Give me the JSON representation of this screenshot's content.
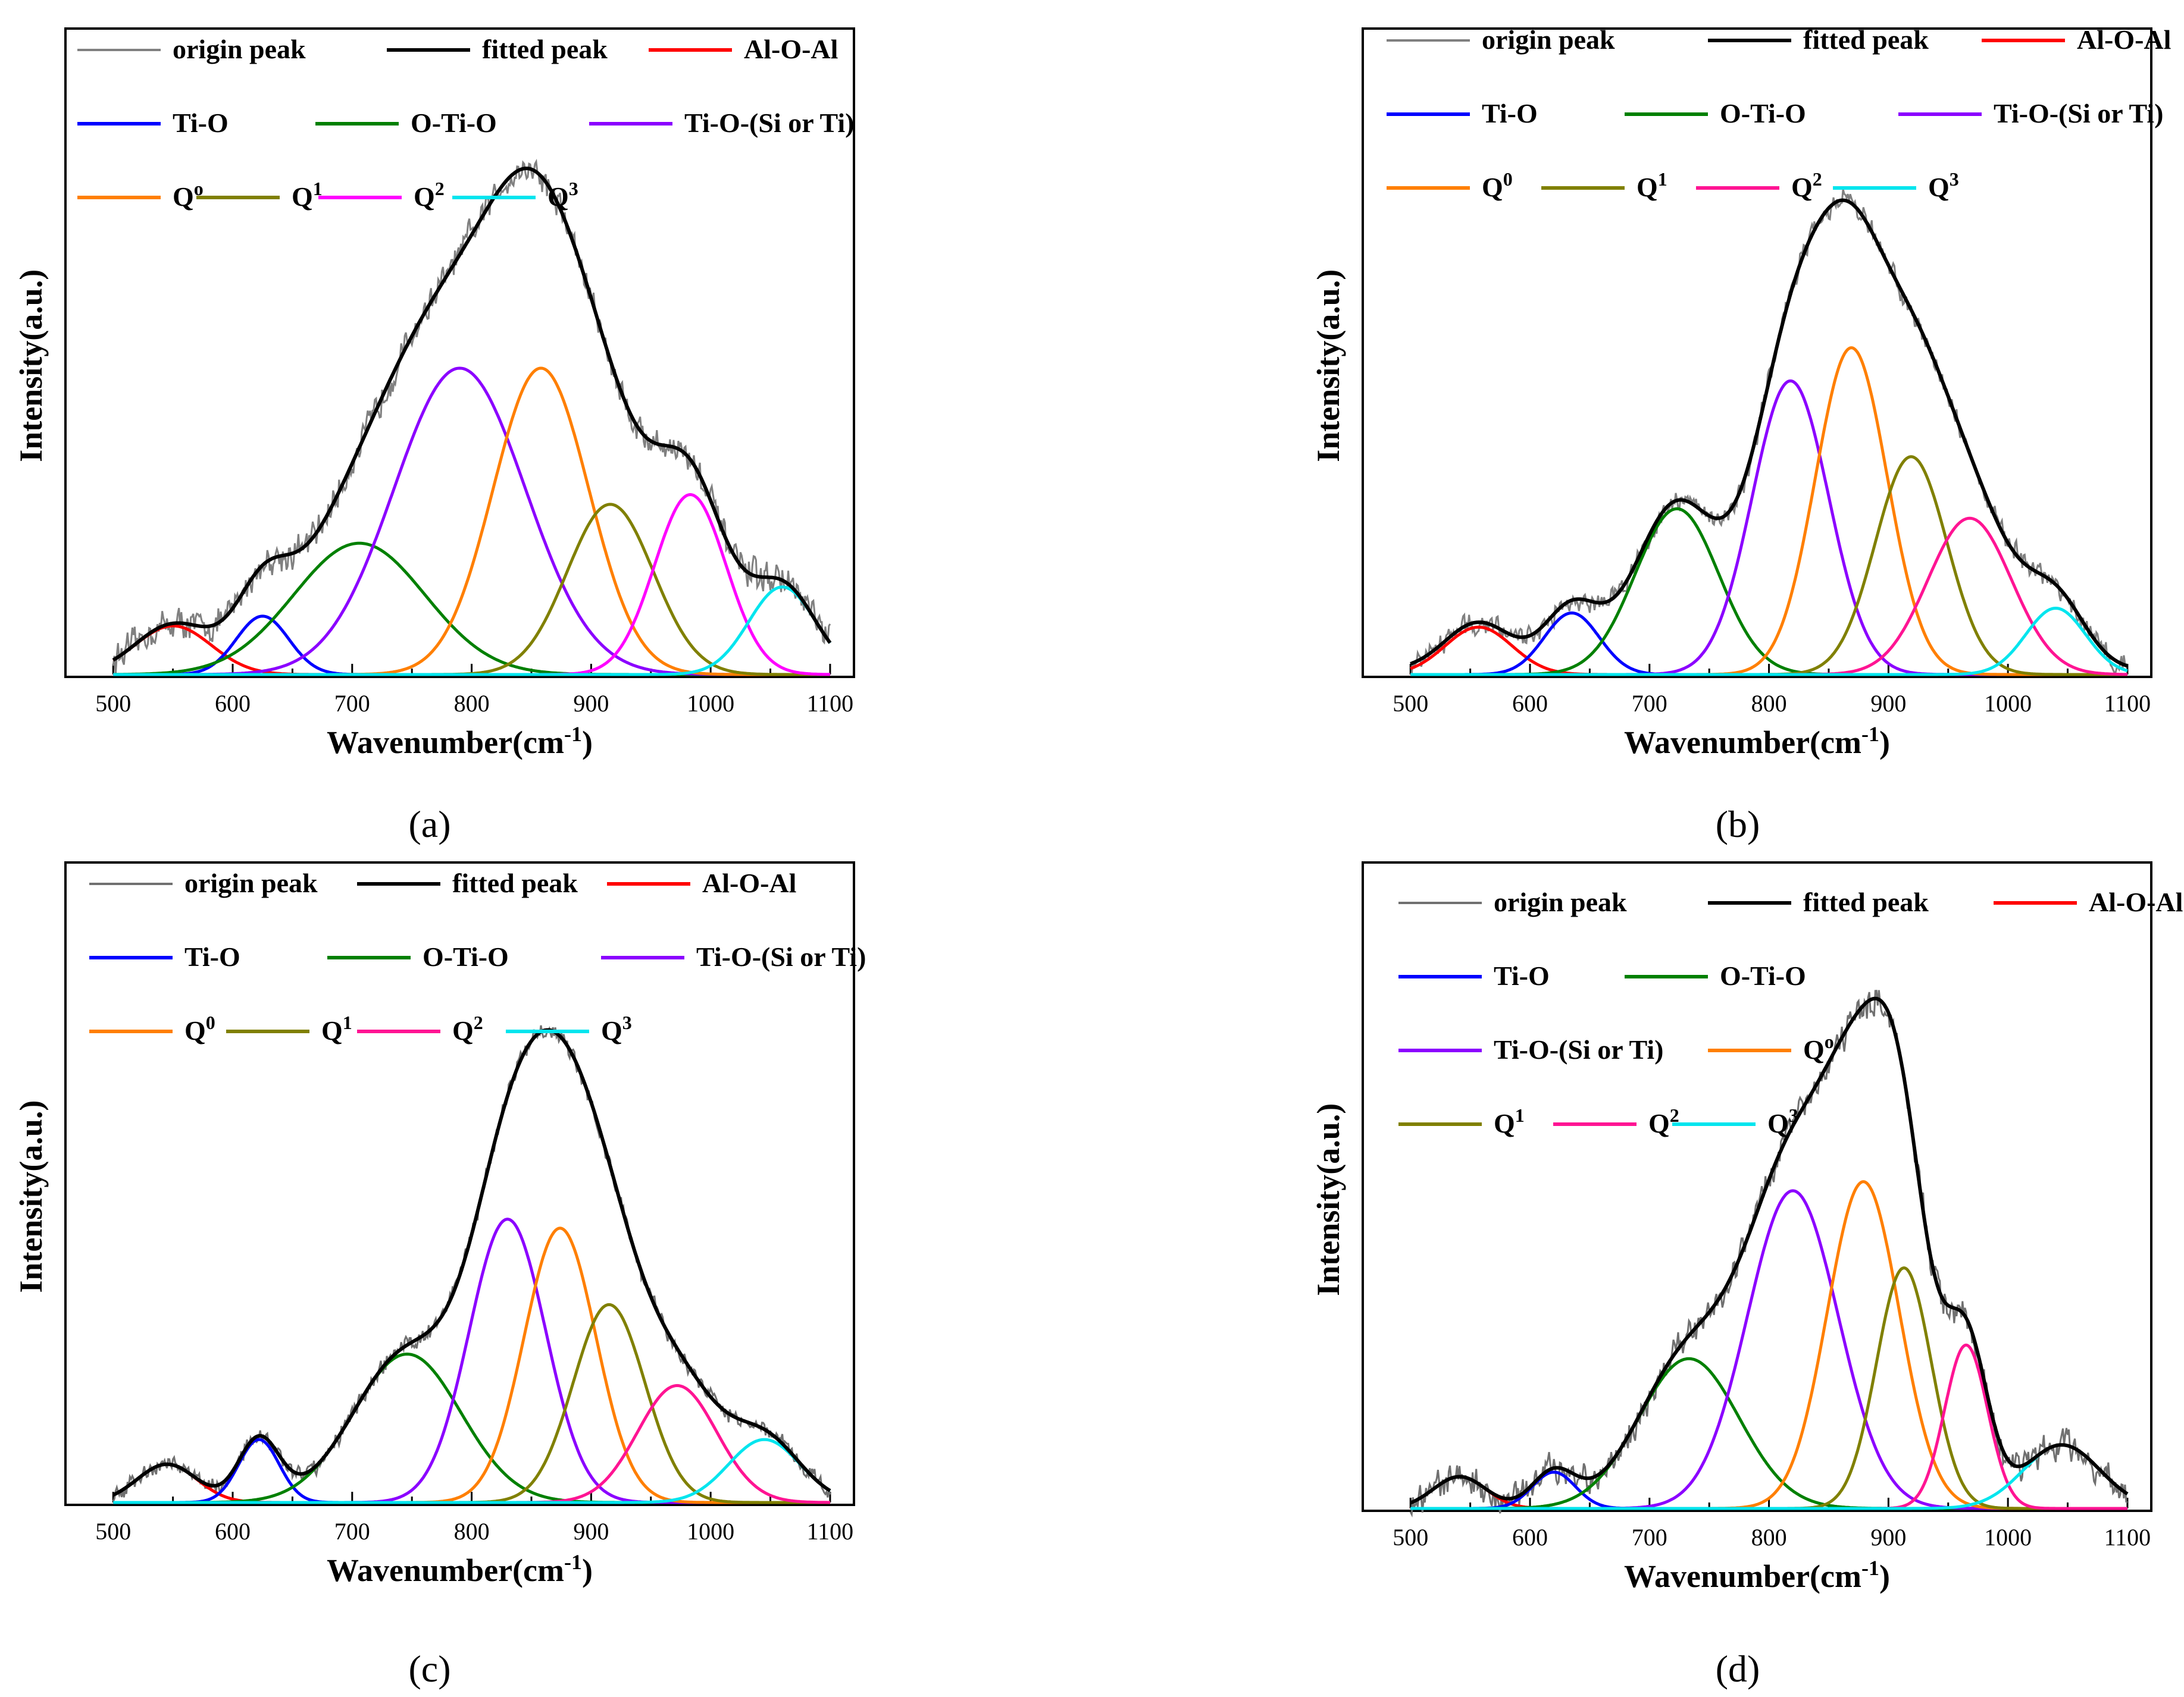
{
  "figure": {
    "captions": [
      "(a)",
      "(b)",
      "(c)",
      "(d)"
    ]
  },
  "colors": {
    "origin_a": "#808080",
    "origin_c": "#707070",
    "fitted": "#000000",
    "alo": "#ff0000",
    "tio": "#0000ff",
    "otio": "#008000",
    "tiosi": "#8b00ff",
    "q0": "#ff7f00",
    "q1": "#808000",
    "q2_a": "#ff00ff",
    "q2": "#ff1493",
    "q3": "#00e5ee"
  },
  "chart_data": [
    {
      "type": "line",
      "id": "a",
      "caption": "(a)",
      "xlabel": "Wavenumber(cm",
      "xlabel_sup": "-1",
      "xlabel_end": ")",
      "ylabel": "Intensity(a.u.)",
      "xlim": [
        470,
        1110
      ],
      "ylim": [
        0,
        1.12
      ],
      "xticks": [
        500,
        600,
        700,
        800,
        900,
        1000,
        1100
      ],
      "legend_rows": [
        [
          {
            "key": "origin",
            "label": "origin peak",
            "sup": ""
          },
          {
            "key": "fitted",
            "label": "fitted peak",
            "sup": ""
          },
          {
            "key": "alo",
            "label": "Al-O-Al",
            "sup": ""
          }
        ],
        [
          {
            "key": "tio",
            "label": "Ti-O",
            "sup": ""
          },
          {
            "key": "otio",
            "label": "O-Ti-O",
            "sup": ""
          },
          {
            "key": "tiosi",
            "label": "Ti-O-(Si or Ti)",
            "sup": ""
          }
        ],
        [
          {
            "key": "q0",
            "label": "Q",
            "sup": "o"
          },
          {
            "key": "q1",
            "label": "Q",
            "sup": "1"
          },
          {
            "key": "q2",
            "label": "Q",
            "sup": "2"
          },
          {
            "key": "q3",
            "label": "Q",
            "sup": "3"
          }
        ]
      ],
      "noise": 0.035,
      "baseline": 0.0,
      "components": [
        {
          "key": "alo",
          "name": "Al-O-Al",
          "center": 550,
          "height": 0.1,
          "sigma": 32
        },
        {
          "key": "tio",
          "name": "Ti-O",
          "center": 625,
          "height": 0.12,
          "sigma": 22
        },
        {
          "key": "otio",
          "name": "O-Ti-O",
          "center": 706,
          "height": 0.27,
          "sigma": 55
        },
        {
          "key": "tiosi",
          "name": "Ti-O-(Si or Ti)",
          "center": 790,
          "height": 0.63,
          "sigma": 55
        },
        {
          "key": "q0",
          "name": "Q0",
          "center": 858,
          "height": 0.63,
          "sigma": 40
        },
        {
          "key": "q1",
          "name": "Q1",
          "center": 916,
          "height": 0.35,
          "sigma": 36
        },
        {
          "key": "q2",
          "name": "Q2",
          "center": 983,
          "height": 0.37,
          "sigma": 30
        },
        {
          "key": "q3",
          "name": "Q3",
          "center": 1060,
          "height": 0.18,
          "sigma": 28
        }
      ]
    },
    {
      "type": "line",
      "id": "b",
      "caption": "(b)",
      "xlabel": "Wavenumber(cm",
      "xlabel_sup": "-1",
      "xlabel_end": ")",
      "ylabel": "Intensity(a.u.)",
      "xlim": [
        470,
        1110
      ],
      "ylim": [
        0,
        1.15
      ],
      "xticks": [
        500,
        600,
        700,
        800,
        900,
        1000,
        1100
      ],
      "legend_rows": [
        [
          {
            "key": "origin",
            "label": "origin peak",
            "sup": ""
          },
          {
            "key": "fitted",
            "label": "fitted peak",
            "sup": ""
          },
          {
            "key": "alo",
            "label": "Al-O-Al",
            "sup": ""
          }
        ],
        [
          {
            "key": "tio",
            "label": "Ti-O",
            "sup": ""
          },
          {
            "key": "otio",
            "label": "O-Ti-O",
            "sup": ""
          },
          {
            "key": "tiosi",
            "label": "Ti-O-(Si or Ti)",
            "sup": ""
          }
        ],
        [
          {
            "key": "q0",
            "label": "Q",
            "sup": "0"
          },
          {
            "key": "q1",
            "label": "Q",
            "sup": "1"
          },
          {
            "key": "q2",
            "label": "Q",
            "sup": "2"
          },
          {
            "key": "q3",
            "label": "Q",
            "sup": "3"
          }
        ]
      ],
      "noise": 0.025,
      "baseline": 0.01,
      "components": [
        {
          "key": "alo",
          "name": "Al-O-Al",
          "center": 557,
          "height": 0.1,
          "sigma": 28
        },
        {
          "key": "tio",
          "name": "Ti-O",
          "center": 635,
          "height": 0.13,
          "sigma": 23
        },
        {
          "key": "otio",
          "name": "O-Ti-O",
          "center": 723,
          "height": 0.35,
          "sigma": 35
        },
        {
          "key": "tiosi",
          "name": "Ti-O-(Si or Ti)",
          "center": 818,
          "height": 0.62,
          "sigma": 32
        },
        {
          "key": "q0",
          "name": "Q0",
          "center": 869,
          "height": 0.69,
          "sigma": 30
        },
        {
          "key": "q1",
          "name": "Q1",
          "center": 919,
          "height": 0.46,
          "sigma": 30
        },
        {
          "key": "q2",
          "name": "Q2",
          "center": 968,
          "height": 0.33,
          "sigma": 35
        },
        {
          "key": "q3",
          "name": "Q3",
          "center": 1040,
          "height": 0.14,
          "sigma": 25
        }
      ]
    },
    {
      "type": "line",
      "id": "c",
      "caption": "(c)",
      "xlabel": "Wavenumber(cm",
      "xlabel_sup": "-1",
      "xlabel_end": ")",
      "ylabel": "Intensity(a.u.)",
      "xlim": [
        470,
        1110
      ],
      "ylim": [
        0,
        1.2
      ],
      "xticks": [
        500,
        600,
        700,
        800,
        900,
        1000,
        1100
      ],
      "legend_rows": [
        [
          {
            "key": "origin",
            "label": "origin peak",
            "sup": ""
          },
          {
            "key": "fitted",
            "label": "fitted peak",
            "sup": ""
          },
          {
            "key": "alo",
            "label": "Al-O-Al",
            "sup": ""
          }
        ],
        [
          {
            "key": "tio",
            "label": "Ti-O",
            "sup": ""
          },
          {
            "key": "otio",
            "label": "O-Ti-O",
            "sup": ""
          },
          {
            "key": "tiosi",
            "label": "Ti-O-(Si or Ti)",
            "sup": ""
          }
        ],
        [
          {
            "key": "q0",
            "label": "Q",
            "sup": "0"
          },
          {
            "key": "q1",
            "label": "Q",
            "sup": "1"
          },
          {
            "key": "q2",
            "label": "Q",
            "sup": "2"
          },
          {
            "key": "q3",
            "label": "Q",
            "sup": "3"
          }
        ]
      ],
      "noise": 0.02,
      "baseline": 0.0,
      "components": [
        {
          "key": "alo",
          "name": "Al-O-Al",
          "center": 545,
          "height": 0.085,
          "sigma": 25
        },
        {
          "key": "tio",
          "name": "Ti-O",
          "center": 622,
          "height": 0.14,
          "sigma": 17
        },
        {
          "key": "otio",
          "name": "O-Ti-O",
          "center": 746,
          "height": 0.33,
          "sigma": 45
        },
        {
          "key": "tiosi",
          "name": "Ti-O-(Si or Ti)",
          "center": 830,
          "height": 0.63,
          "sigma": 32
        },
        {
          "key": "q0",
          "name": "Q0",
          "center": 874,
          "height": 0.61,
          "sigma": 30
        },
        {
          "key": "q1",
          "name": "Q1",
          "center": 915,
          "height": 0.44,
          "sigma": 30
        },
        {
          "key": "q2",
          "name": "Q2",
          "center": 972,
          "height": 0.26,
          "sigma": 33
        },
        {
          "key": "q3",
          "name": "Q3",
          "center": 1045,
          "height": 0.14,
          "sigma": 30
        }
      ]
    },
    {
      "type": "line",
      "id": "d",
      "caption": "(d)",
      "xlabel": "Wavenumber(cm",
      "xlabel_sup": "-1",
      "xlabel_end": ")",
      "ylabel": "Intensity(a.u.)",
      "xlim": [
        470,
        1110
      ],
      "ylim": [
        0,
        1.2
      ],
      "xticks": [
        500,
        600,
        700,
        800,
        900,
        1000,
        1100
      ],
      "legend_rows": [
        [
          {
            "key": "origin",
            "label": "origin peak",
            "sup": ""
          },
          {
            "key": "fitted",
            "label": "fitted peak",
            "sup": ""
          },
          {
            "key": "alo",
            "label": "Al-O-Al",
            "sup": ""
          }
        ],
        [
          {
            "key": "tio",
            "label": "Ti-O",
            "sup": ""
          },
          {
            "key": "otio",
            "label": "O-Ti-O",
            "sup": ""
          }
        ],
        [
          {
            "key": "tiosi",
            "label": "Ti-O-(Si or Ti)",
            "sup": ""
          },
          {
            "key": "q0",
            "label": "Q",
            "sup": "o"
          }
        ],
        [
          {
            "key": "q1",
            "label": "Q",
            "sup": "1"
          },
          {
            "key": "q2",
            "label": "Q",
            "sup": "2"
          },
          {
            "key": "q3",
            "label": "Q",
            "sup": "3"
          }
        ]
      ],
      "noise": 0.035,
      "baseline": 0.0,
      "components": [
        {
          "key": "alo",
          "name": "Al-O-Al",
          "center": 541,
          "height": 0.07,
          "sigma": 22
        },
        {
          "key": "tio",
          "name": "Ti-O",
          "center": 620,
          "height": 0.08,
          "sigma": 18
        },
        {
          "key": "otio",
          "name": "O-Ti-O",
          "center": 733,
          "height": 0.33,
          "sigma": 42
        },
        {
          "key": "tiosi",
          "name": "Ti-O-(Si or Ti)",
          "center": 820,
          "height": 0.7,
          "sigma": 38
        },
        {
          "key": "q0",
          "name": "Q0",
          "center": 879,
          "height": 0.72,
          "sigma": 30
        },
        {
          "key": "q1",
          "name": "Q1",
          "center": 913,
          "height": 0.53,
          "sigma": 23
        },
        {
          "key": "q2",
          "name": "Q2",
          "center": 965,
          "height": 0.36,
          "sigma": 18
        },
        {
          "key": "q3",
          "name": "Q3",
          "center": 1045,
          "height": 0.14,
          "sigma": 32
        }
      ]
    }
  ]
}
